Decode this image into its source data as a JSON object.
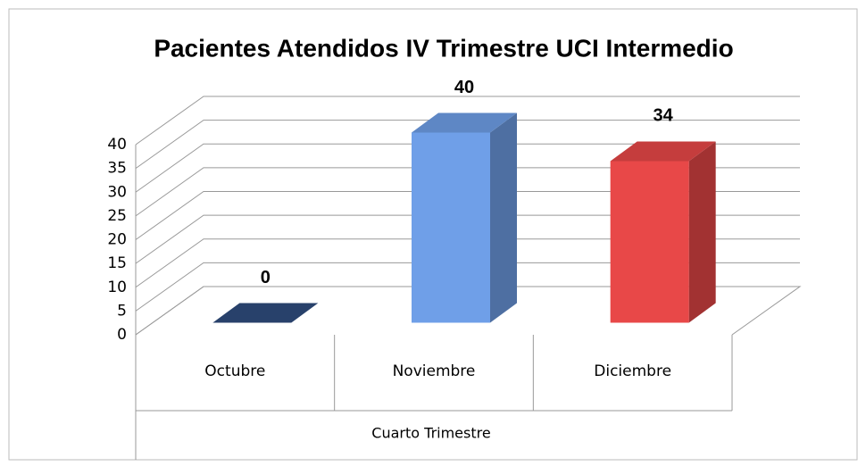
{
  "chart_data": {
    "type": "bar3d",
    "title": "Pacientes Atendidos IV Trimestre UCI Intermedio",
    "categories": [
      "Octubre",
      "Noviembre",
      "Diciembre"
    ],
    "group_label": "Cuarto Trimestre",
    "values": [
      0,
      40,
      34
    ],
    "colors": [
      "#2f4d7e",
      "#6f9fe8",
      "#e84848"
    ],
    "ylim": [
      0,
      40
    ],
    "yticks": [
      0,
      5,
      10,
      15,
      20,
      25,
      30,
      35,
      40
    ],
    "grid": true
  }
}
